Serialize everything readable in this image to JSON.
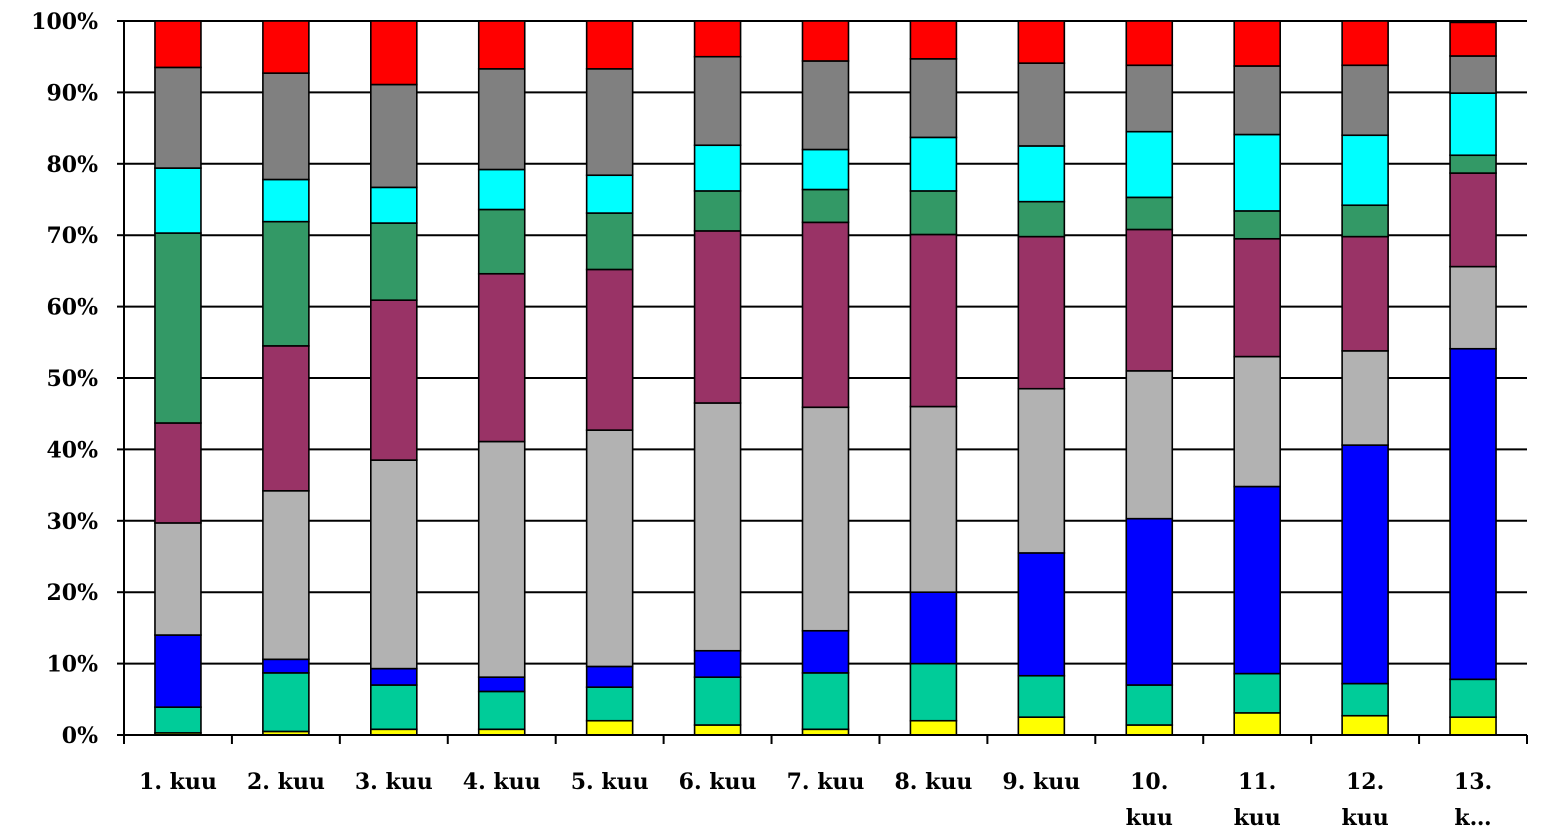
{
  "chart_data": {
    "type": "bar",
    "stacked": true,
    "percent": true,
    "categories": [
      "1. kuu",
      "2. kuu",
      "3. kuu",
      "4. kuu",
      "5. kuu",
      "6. kuu",
      "7. kuu",
      "8. kuu",
      "9. kuu",
      "10. kuu",
      "11. kuu",
      "12. kuu",
      "13. k…"
    ],
    "category_lines": [
      [
        "1. kuu"
      ],
      [
        "2. kuu"
      ],
      [
        "3. kuu"
      ],
      [
        "4. kuu"
      ],
      [
        "5. kuu"
      ],
      [
        "6. kuu"
      ],
      [
        "7. kuu"
      ],
      [
        "8. kuu"
      ],
      [
        "9. kuu"
      ],
      [
        "10.",
        "kuu"
      ],
      [
        "11.",
        "kuu"
      ],
      [
        "12.",
        "kuu"
      ],
      [
        "13.",
        "k…"
      ]
    ],
    "ylim": [
      0,
      100
    ],
    "yticks": [
      "0%",
      "10%",
      "20%",
      "30%",
      "40%",
      "50%",
      "60%",
      "70%",
      "80%",
      "90%",
      "100%"
    ],
    "grid": true,
    "series": [
      {
        "color": "#FFFF00",
        "values": [
          0.3,
          0.5,
          0.8,
          0.8,
          2.0,
          1.4,
          0.8,
          2.0,
          2.5,
          1.4,
          3.1,
          2.7,
          2.5
        ]
      },
      {
        "color": "#00CC99",
        "values": [
          3.6,
          8.2,
          6.2,
          5.3,
          4.7,
          6.7,
          7.9,
          8.0,
          5.8,
          5.6,
          5.5,
          4.5,
          5.3
        ]
      },
      {
        "color": "#0000FF",
        "values": [
          10.1,
          1.9,
          2.3,
          2.0,
          2.9,
          3.7,
          5.9,
          10.0,
          17.2,
          23.3,
          26.2,
          33.4,
          46.3
        ]
      },
      {
        "color": "#B2B2B2",
        "values": [
          15.7,
          23.6,
          29.2,
          33.0,
          33.1,
          34.7,
          31.3,
          26.0,
          23.0,
          20.7,
          18.2,
          13.2,
          11.5
        ]
      },
      {
        "color": "#993366",
        "values": [
          14.0,
          20.3,
          22.4,
          23.5,
          22.5,
          24.1,
          25.9,
          24.1,
          21.3,
          19.8,
          16.5,
          16.0,
          13.1
        ]
      },
      {
        "color": "#339966",
        "values": [
          26.6,
          17.4,
          10.8,
          9.0,
          7.9,
          5.6,
          4.6,
          6.1,
          4.9,
          4.5,
          3.9,
          4.4,
          2.5
        ]
      },
      {
        "color": "#00FFFF",
        "values": [
          9.1,
          5.9,
          5.0,
          5.6,
          5.3,
          6.4,
          5.6,
          7.5,
          7.8,
          9.2,
          10.7,
          9.8,
          8.7
        ]
      },
      {
        "color": "#808080",
        "values": [
          14.1,
          14.9,
          14.4,
          14.1,
          14.9,
          12.4,
          12.4,
          11.0,
          11.6,
          9.3,
          9.6,
          9.8,
          5.2
        ]
      },
      {
        "color": "#FF0000",
        "values": [
          6.5,
          7.3,
          8.9,
          6.7,
          6.7,
          5.0,
          5.6,
          5.3,
          5.9,
          6.2,
          6.3,
          6.2,
          4.7
        ]
      }
    ]
  }
}
